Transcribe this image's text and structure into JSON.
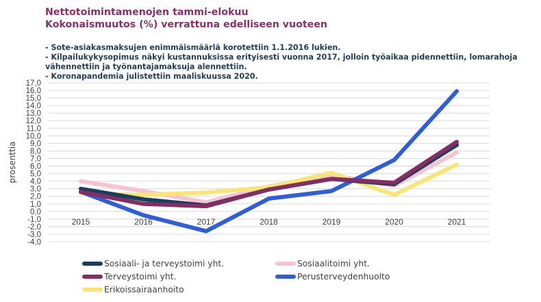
{
  "title_lines": [
    "Nettotoimintamenojen tammi-elokuu",
    "Kokonaismuutos (%) verrattuna edelliseen vuoteen"
  ],
  "notes": [
    "- Sote-asiakasmaksujen enimmäismäärlä korotettiin 1.1.2016 lukien.",
    "- Kilpailukykysopimus näkyi kustannuksissa erityisesti vuonna 2017, jolloin työaikaa pidennettiin, lomarahoja",
    "  vähennettiin ja työnantajamaksuja alennettiin.",
    "- Koronapandemia julistettiin maaliskuussa 2020."
  ],
  "chart_data": {
    "type": "line",
    "categories": [
      "2015",
      "2016",
      "2017",
      "2018",
      "2019",
      "2020",
      "2021"
    ],
    "ylabel": "prosenttia",
    "xlabel": "",
    "ylim": [
      -4,
      17
    ],
    "yticks": [
      "17,0",
      "16,0",
      "15,0",
      "14,0",
      "13,0",
      "12,0",
      "11,0",
      "10,0",
      "9,0",
      "8,0",
      "7,0",
      "6,0",
      "5,0",
      "4,0",
      "3,0",
      "2,0",
      "1,0",
      "0,0",
      "-1,0",
      "-2,0",
      "-3,0",
      "-4,0"
    ],
    "grid": true,
    "legend_position": "bottom",
    "series": [
      {
        "name": "Sosiaalitoimi yht.",
        "color": "#f8c3cf",
        "values": [
          4.0,
          2.7,
          1.2,
          3.3,
          4.8,
          3.4,
          7.8
        ]
      },
      {
        "name": "Erikoissairaanhoito",
        "color": "#f9e574",
        "values": [
          2.4,
          2.2,
          2.5,
          3.2,
          5.1,
          2.2,
          6.2
        ]
      },
      {
        "name": "Perusterveydenhuolto",
        "color": "#2e5fd8",
        "values": [
          2.6,
          -0.5,
          -2.6,
          1.7,
          2.7,
          6.8,
          15.9
        ]
      },
      {
        "name": "Sosiaali- ja terveystoimi yht.",
        "color": "#17405f",
        "values": [
          3.0,
          1.6,
          0.8,
          2.9,
          4.3,
          3.6,
          8.8
        ]
      },
      {
        "name": "Terveystoimi yht.",
        "color": "#842c64",
        "values": [
          2.6,
          1.0,
          0.7,
          2.9,
          4.3,
          3.8,
          9.2
        ]
      }
    ],
    "legend": [
      {
        "name": "Sosiaali- ja terveystoimi yht.",
        "color": "#17405f"
      },
      {
        "name": "Sosiaalitoimi yht.",
        "color": "#f8c3cf"
      },
      {
        "name": "Terveystoimi yht.",
        "color": "#842c64"
      },
      {
        "name": "Perusterveydenhuolto",
        "color": "#2e5fd8"
      },
      {
        "name": "Erikoissairaanhoito",
        "color": "#f9e574"
      }
    ]
  }
}
